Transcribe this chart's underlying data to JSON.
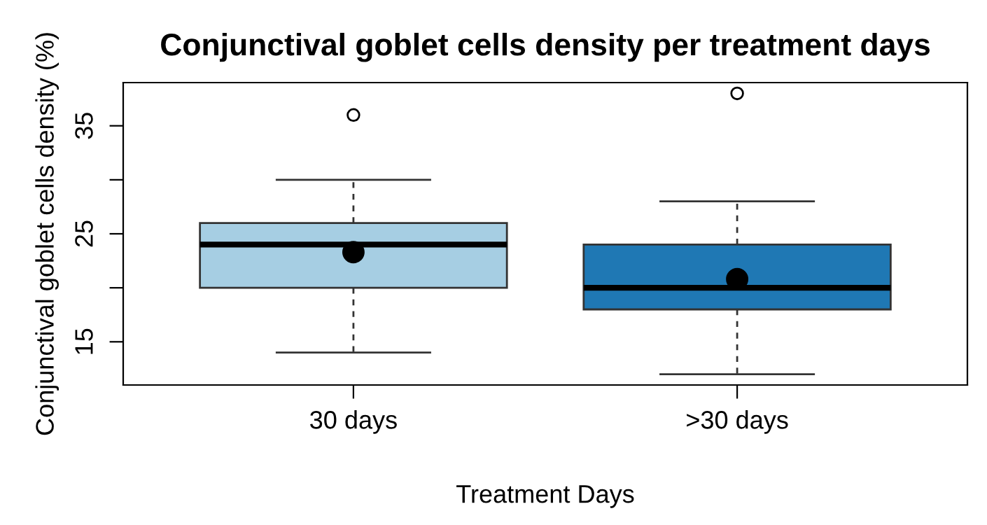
{
  "chart_data": {
    "type": "box",
    "title": "Conjunctival goblet cells density per treatment days",
    "xlabel": "Treatment Days",
    "ylabel": "Conjunctival goblet cells density (%)",
    "categories": [
      "30 days",
      ">30 days"
    ],
    "colors": [
      "#a6cee3",
      "#1f78b4"
    ],
    "boxes": [
      {
        "low": 14,
        "q1": 20,
        "median": 24,
        "q3": 26,
        "high": 30,
        "mean": 23.3,
        "outliers": [
          36
        ]
      },
      {
        "low": 12,
        "q1": 18,
        "median": 20,
        "q3": 24,
        "high": 28,
        "mean": 20.8,
        "outliers": [
          38
        ]
      }
    ],
    "ylim": [
      11,
      39
    ],
    "yticks": [
      15,
      {
        "value": 20,
        "label": null
      },
      25,
      {
        "value": 30,
        "label": null
      },
      35
    ],
    "grid": false,
    "legend": false
  }
}
